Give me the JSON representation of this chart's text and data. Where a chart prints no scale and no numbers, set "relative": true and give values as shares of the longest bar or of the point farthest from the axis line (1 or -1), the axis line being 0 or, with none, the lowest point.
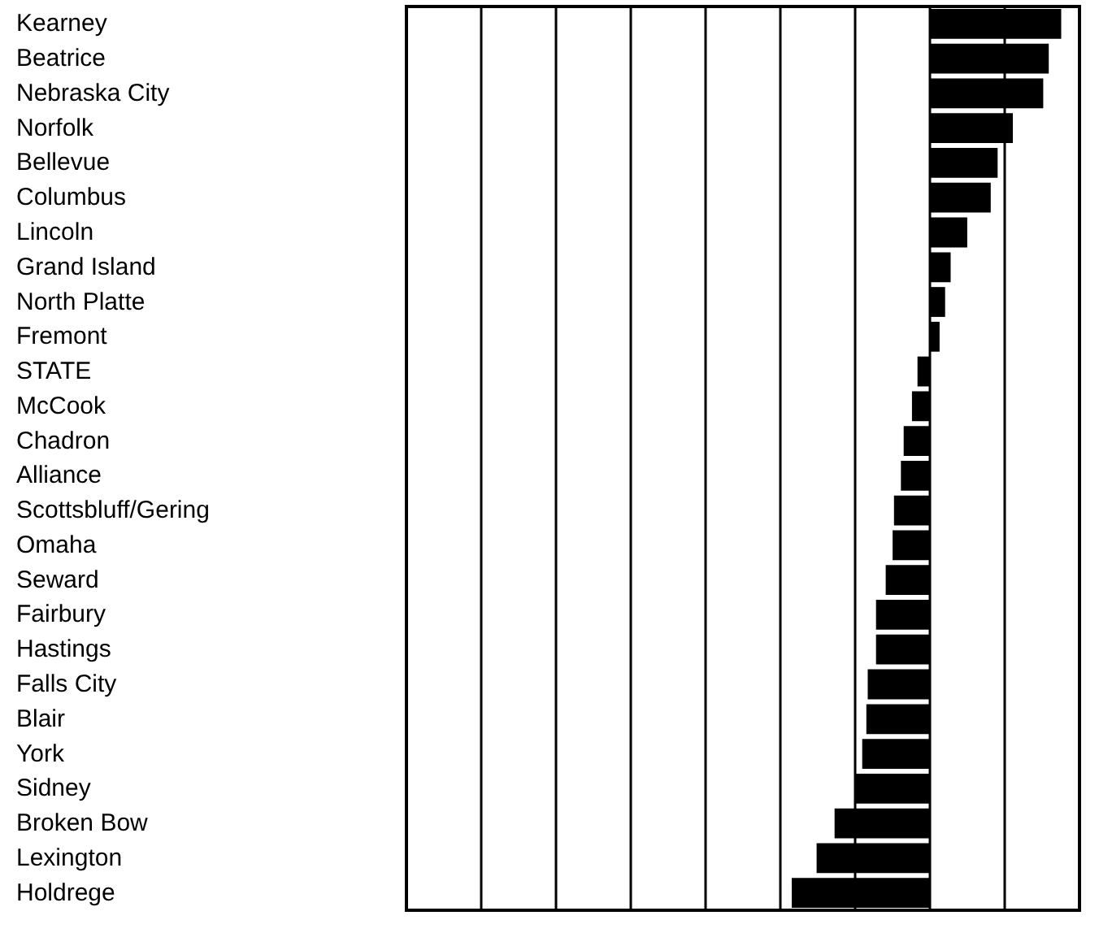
{
  "chart_data": {
    "type": "bar",
    "orientation": "horizontal",
    "relative": true,
    "grid": "x",
    "categories": [
      "Kearney",
      "Beatrice",
      "Nebraska City",
      "Norfolk",
      "Bellevue",
      "Columbus",
      "Lincoln",
      "Grand Island",
      "North Platte",
      "Fremont",
      "STATE",
      "McCook",
      "Chadron",
      "Alliance",
      "Scottsbluff/Gering",
      "Omaha",
      "Seward",
      "Fairbury",
      "Hastings",
      "Falls City",
      "Blair",
      "York",
      "Sidney",
      "Broken Bow",
      "Lexington",
      "Holdrege"
    ],
    "values": [
      0.95,
      0.86,
      0.82,
      0.6,
      0.49,
      0.44,
      0.27,
      0.15,
      0.11,
      0.07,
      -0.09,
      -0.13,
      -0.19,
      -0.21,
      -0.26,
      -0.27,
      -0.32,
      -0.39,
      -0.39,
      -0.45,
      -0.46,
      -0.49,
      -0.54,
      -0.69,
      -0.82,
      -1
    ],
    "color": "#000000"
  }
}
